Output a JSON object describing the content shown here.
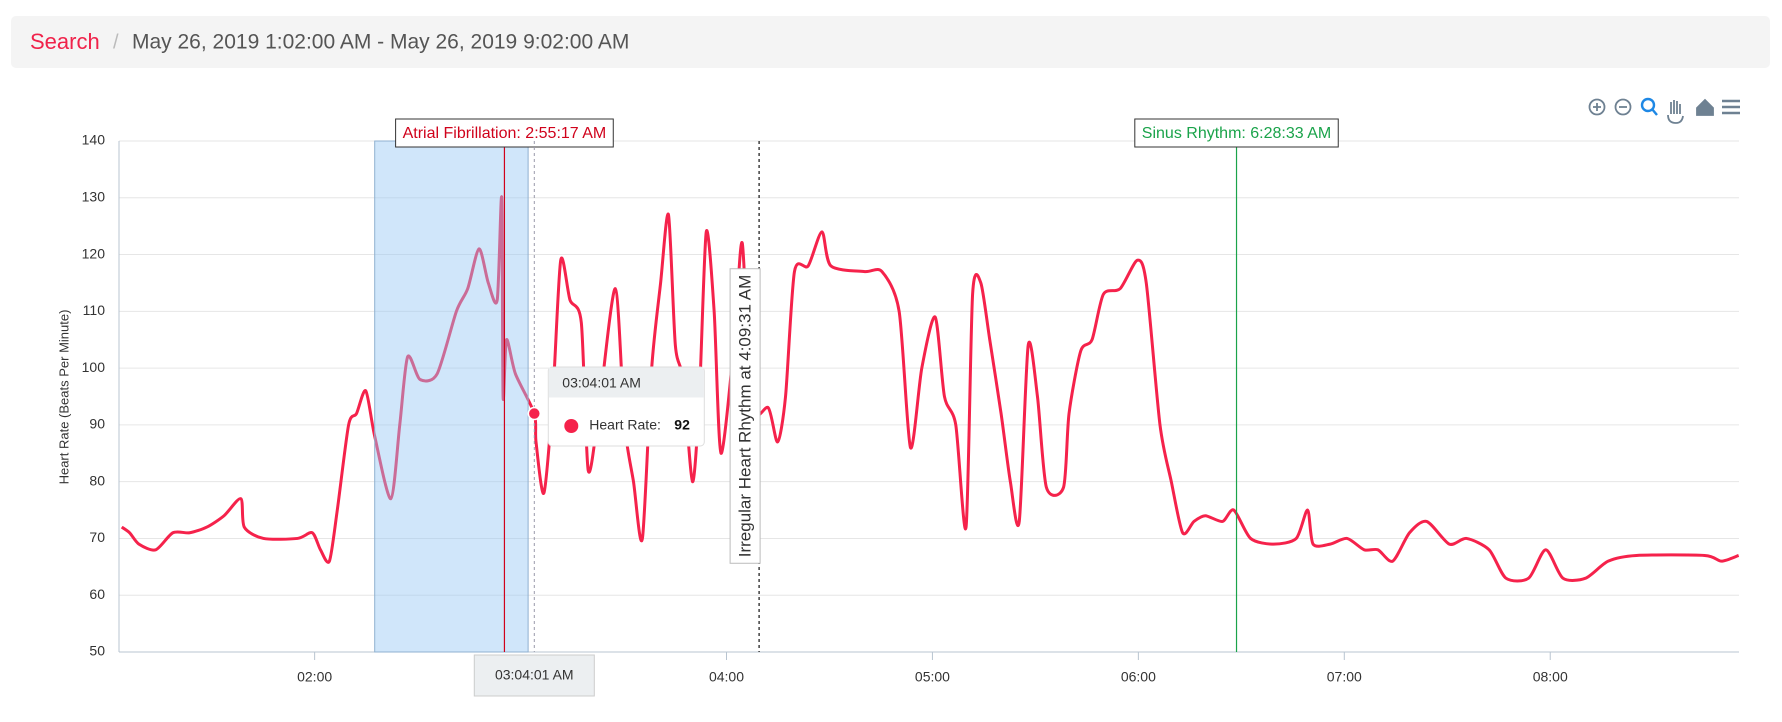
{
  "breadcrumb": {
    "link": "Search",
    "separator": "/",
    "range": "May 26, 2019 1:02:00 AM - May 26, 2019 9:02:00 AM"
  },
  "chart_data": {
    "type": "line",
    "y_label": "Heart Rate (Beats Per Minute)",
    "x": [
      63.8,
      66.1,
      68.8,
      73.7,
      78.7,
      83.6,
      88.6,
      93.6,
      98.5,
      99.5,
      105.1,
      115,
      119.3,
      121.7,
      124.3,
      126.6,
      129.9,
      132.2,
      134.9,
      137.5,
      142.2,
      144.8,
      147.1,
      150.7,
      155.7,
      161.3,
      164.6,
      167.9,
      170.6,
      173.2,
      174.5,
      174.9,
      175.9,
      178.5,
      184.0,
      184.5,
      186.8,
      189.4,
      191.7,
      194.4,
      197.7,
      199.7,
      202.7,
      207.6,
      210.3,
      212.9,
      215.5,
      218.2,
      220.8,
      223.1,
      225.1,
      227.4,
      230.1,
      232.1,
      234.1,
      236.4,
      238.4,
      242.3,
      244.6,
      247.3,
      252.2,
      254.9,
      257.2,
      259.8,
      263.8,
      267.8,
      270.4,
      280.3,
      285.3,
      290.3,
      293.6,
      296.9,
      300.8,
      303.5,
      306.8,
      309.8,
      311.7,
      314.1,
      316.7,
      320,
      322.7,
      325.3,
      327.9,
      330.6,
      333.2,
      338.2,
      339.8,
      343.2,
      346.5,
      349.8,
      354.7,
      359.7,
      362.3,
      366.3,
      369.6,
      372.9,
      376.2,
      379.5,
      384.5,
      387.8,
      392.7,
      399.4,
      406,
      409.3,
      410.9,
      415.9,
      420.8,
      425.8,
      429.8,
      434.1,
      439,
      444,
      450.6,
      455.6,
      462.2,
      467.1,
      473.7,
      478.7,
      483.7,
      490.3,
      496.9,
      505.1,
      525,
      529.9,
      534.9
    ],
    "series": [
      {
        "name": "Heart Rate:",
        "color": "#f5224b",
        "values": [
          72,
          71,
          69,
          68,
          71,
          71,
          72,
          74,
          77,
          72,
          70,
          70,
          71,
          68,
          66,
          75,
          90,
          92,
          96,
          88,
          77,
          90,
          102,
          98,
          99,
          110,
          114,
          121,
          115,
          112,
          130,
          95,
          105,
          99,
          92,
          87,
          78,
          95,
          119,
          112,
          108,
          82,
          92,
          114,
          90,
          80,
          70,
          100,
          115,
          127,
          104,
          98,
          80,
          95,
          124,
          110,
          85,
          105,
          122,
          93,
          93,
          87,
          95,
          117,
          118,
          124,
          118,
          117,
          117,
          110,
          86,
          100,
          109,
          95,
          90,
          72,
          113,
          115,
          105,
          92,
          80,
          73,
          104,
          95,
          79,
          79,
          92,
          103,
          105,
          113,
          114,
          119,
          115,
          90,
          80,
          71,
          73,
          74,
          73,
          75,
          70,
          69,
          70,
          75,
          69,
          69,
          70,
          68,
          68,
          66,
          71,
          73,
          69,
          70,
          68,
          63,
          63,
          68,
          63,
          63,
          66,
          67,
          67,
          66,
          67
        ]
      }
    ],
    "xlim": [
      63,
      535
    ],
    "xticks": [
      {
        "value": 120,
        "label": "02:00"
      },
      {
        "value": 240,
        "label": "04:00"
      },
      {
        "value": 300,
        "label": "05:00"
      },
      {
        "value": 360,
        "label": "06:00"
      },
      {
        "value": 420,
        "label": "07:00"
      },
      {
        "value": 480,
        "label": "08:00"
      }
    ],
    "ylim": [
      50,
      140
    ],
    "yticks": [
      50,
      60,
      70,
      80,
      90,
      100,
      110,
      120,
      130,
      140
    ],
    "grid": true,
    "highlight_range": [
      137.5,
      182.2
    ],
    "annotations": [
      {
        "label": "Atrial Fibrillation: 2:55:17 AM",
        "x": 175.3,
        "color": "#d0021b",
        "style": "top"
      },
      {
        "label": "Irregular Heart Rhythm at 4:09:31 AM",
        "x": 249.5,
        "color": "#333333",
        "style": "vertical"
      },
      {
        "label": "Sinus Rhythm: 6:28:33 AM",
        "x": 388.6,
        "color": "#1aa34a",
        "style": "top"
      }
    ],
    "tooltip": {
      "time": "03:04:01 AM",
      "x": 184.0,
      "value": 92
    }
  }
}
